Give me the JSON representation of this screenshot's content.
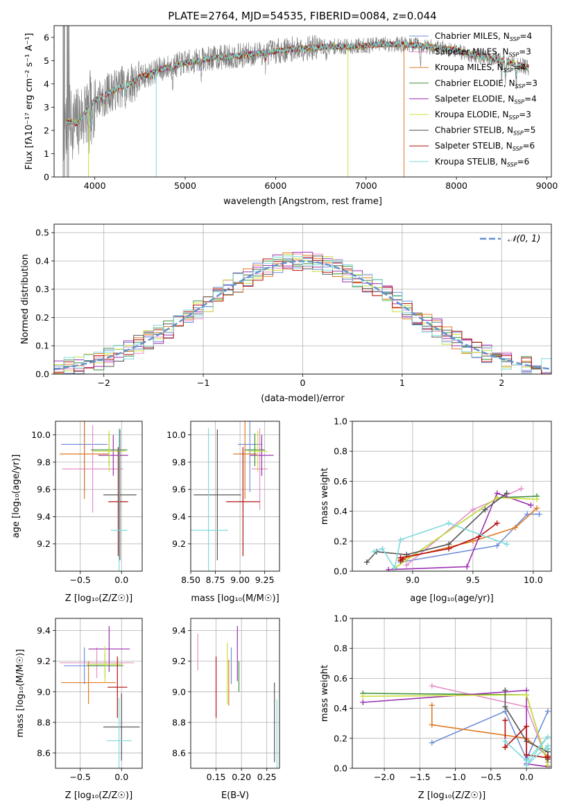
{
  "title": "PLATE=2764, MJD=54535, FIBERID=0084, z=0.044",
  "colors": {
    "Chabrier MILES": "#6f8fd8",
    "Salpeter MILES": "#e58fc7",
    "Kroupa MILES": "#e07a24",
    "Chabrier ELODIE": "#3e8e3e",
    "Salpeter ELODIE": "#9b2fb0",
    "Kroupa ELODIE": "#c9e03a",
    "Chabrier STELIB": "#555555",
    "Salpeter STELIB": "#b30f0f",
    "Kroupa STELIB": "#7fd9dc",
    "data": "#808080",
    "normal": "#5f8fd0"
  },
  "legend_top": [
    {
      "name": "Chabrier MILES, N",
      "sub": "SSP",
      "tail": "=4"
    },
    {
      "name": "Salpeter MILES, N",
      "sub": "SSP",
      "tail": "=3"
    },
    {
      "name": "Kroupa MILES, N",
      "sub": "SSP",
      "tail": "=4"
    },
    {
      "name": "Chabrier ELODIE, N",
      "sub": "SSP",
      "tail": "=3"
    },
    {
      "name": "Salpeter ELODIE, N",
      "sub": "SSP",
      "tail": "=4"
    },
    {
      "name": "Kroupa ELODIE, N",
      "sub": "SSP",
      "tail": "=3"
    },
    {
      "name": "Chabrier STELIB, N",
      "sub": "SSP",
      "tail": "=5"
    },
    {
      "name": "Salpeter STELIB, N",
      "sub": "SSP",
      "tail": "=6"
    },
    {
      "name": "Kroupa STELIB, N",
      "sub": "SSP",
      "tail": "=6"
    }
  ],
  "chart_data": [
    {
      "id": "spectrum",
      "type": "line",
      "xlabel": "wavelength [Angstrom, rest frame]",
      "ylabel": "Flux [fλ10⁻¹⁷ erg cm⁻² s⁻¹ A⁻¹]",
      "xlim": [
        3550,
        9050
      ],
      "ylim": [
        0,
        6.5
      ],
      "xticks": [
        4000,
        5000,
        6000,
        7000,
        8000,
        9000
      ],
      "yticks": [
        0,
        1,
        2,
        3,
        4,
        5,
        6
      ],
      "continuum": {
        "x": [
          3650,
          3700,
          3800,
          3900,
          4000,
          4100,
          4200,
          4300,
          4400,
          4500,
          4600,
          4700,
          4800,
          5000,
          5200,
          5400,
          5600,
          5800,
          6000,
          6200,
          6400,
          6600,
          6800,
          7000,
          7200,
          7400,
          7600,
          7800,
          8000,
          8200,
          8400,
          8600,
          8800
        ],
        "y": [
          2.1,
          2.4,
          2.3,
          2.8,
          3.3,
          3.5,
          3.7,
          3.9,
          4.0,
          4.3,
          4.4,
          4.6,
          4.7,
          4.9,
          5.05,
          5.15,
          5.2,
          5.3,
          5.4,
          5.5,
          5.55,
          5.6,
          5.6,
          5.65,
          5.7,
          5.7,
          5.65,
          5.55,
          5.45,
          5.2,
          5.1,
          4.9,
          4.7
        ]
      },
      "gaps": [
        {
          "series": "Kroupa STELIB",
          "x": 4680
        },
        {
          "series": "Kroupa ELODIE",
          "x": 6800
        },
        {
          "series": "Kroupa MILES",
          "x": 7420
        },
        {
          "series": "Kroupa ELODIE",
          "x": 3930
        }
      ],
      "series": [
        "Chabrier MILES",
        "Salpeter MILES",
        "Kroupa MILES",
        "Chabrier ELODIE",
        "Salpeter ELODIE",
        "Kroupa ELODIE",
        "Chabrier STELIB",
        "Salpeter STELIB",
        "Kroupa STELIB"
      ]
    },
    {
      "id": "residuals",
      "type": "line",
      "xlabel": "(data-model)/error",
      "ylabel": "Normed distribution",
      "xlim": [
        -2.5,
        2.5
      ],
      "ylim": [
        0,
        0.53
      ],
      "xticks": [
        -2,
        -1,
        0,
        1,
        2
      ],
      "yticks": [
        0.0,
        0.1,
        0.2,
        0.3,
        0.4,
        0.5
      ],
      "legend": "𝒩(0, 1)",
      "bin_width": 0.1,
      "model": "gaussian",
      "mean": 0,
      "sigma": 1
    },
    {
      "id": "age_vs_Z",
      "type": "scatter",
      "xlabel": "Z [log₁₀(Z/Z☉)]",
      "ylabel": "age  [log₁₀(age/yr)]",
      "xlim": [
        -0.8,
        0.25
      ],
      "ylim": [
        9.0,
        10.1
      ],
      "xticks": [
        -0.5,
        0.0
      ],
      "yticks": [
        9.2,
        9.4,
        9.6,
        9.8,
        10.0
      ],
      "points": [
        {
          "series": "Chabrier MILES",
          "x": -0.45,
          "xerr": 0.28,
          "y": 9.93,
          "yerr": 0.35
        },
        {
          "series": "Salpeter MILES",
          "x": -0.35,
          "xerr": 0.37,
          "y": 9.75,
          "yerr": 0.32
        },
        {
          "series": "Kroupa MILES",
          "x": -0.45,
          "xerr": 0.3,
          "y": 9.86,
          "yerr": 0.33
        },
        {
          "series": "Chabrier ELODIE",
          "x": -0.15,
          "xerr": 0.22,
          "y": 9.89,
          "yerr": 0.12
        },
        {
          "series": "Salpeter ELODIE",
          "x": -0.1,
          "xerr": 0.18,
          "y": 9.85,
          "yerr": 0.15
        },
        {
          "series": "Kroupa ELODIE",
          "x": -0.15,
          "xerr": 0.2,
          "y": 9.88,
          "yerr": 0.15
        },
        {
          "series": "Chabrier STELIB",
          "x": -0.02,
          "xerr": 0.2,
          "y": 9.56,
          "yerr": 0.48
        },
        {
          "series": "Salpeter STELIB",
          "x": -0.04,
          "xerr": 0.12,
          "y": 9.51,
          "yerr": 0.4
        },
        {
          "series": "Kroupa STELIB",
          "x": -0.03,
          "xerr": 0.1,
          "y": 9.3,
          "yerr": 0.75
        }
      ]
    },
    {
      "id": "age_vs_mass",
      "type": "scatter",
      "xlabel": "mass [log₁₀(M/M☉)]",
      "ylabel": "",
      "xlim": [
        8.5,
        9.4
      ],
      "ylim": [
        9.0,
        10.1
      ],
      "xticks": [
        8.5,
        8.75,
        9.0,
        9.25
      ],
      "yticks": [
        9.2,
        9.4,
        9.6,
        9.8,
        10.0
      ],
      "points": [
        {
          "series": "Chabrier MILES",
          "x": 9.1,
          "xerr": 0.12,
          "y": 9.93,
          "yerr": 0.35
        },
        {
          "series": "Salpeter MILES",
          "x": 9.2,
          "xerr": 0.08,
          "y": 9.75,
          "yerr": 0.3
        },
        {
          "series": "Kroupa MILES",
          "x": 9.05,
          "xerr": 0.12,
          "y": 9.86,
          "yerr": 0.33
        },
        {
          "series": "Chabrier ELODIE",
          "x": 9.15,
          "xerr": 0.1,
          "y": 9.89,
          "yerr": 0.12
        },
        {
          "series": "Salpeter ELODIE",
          "x": 9.22,
          "xerr": 0.12,
          "y": 9.85,
          "yerr": 0.15
        },
        {
          "series": "Kroupa ELODIE",
          "x": 9.18,
          "xerr": 0.1,
          "y": 9.88,
          "yerr": 0.15
        },
        {
          "series": "Chabrier STELIB",
          "x": 8.77,
          "xerr": 0.24,
          "y": 9.56,
          "yerr": 0.48
        },
        {
          "series": "Salpeter STELIB",
          "x": 9.03,
          "xerr": 0.17,
          "y": 9.51,
          "yerr": 0.4
        },
        {
          "series": "Kroupa STELIB",
          "x": 8.68,
          "xerr": 0.2,
          "y": 9.3,
          "yerr": 0.75
        }
      ]
    },
    {
      "id": "weight_vs_age",
      "type": "line",
      "xlabel": "age  [log₁₀(age/yr)]",
      "ylabel": "mass weight",
      "xlim": [
        8.5,
        10.15
      ],
      "ylim": [
        0,
        1.0
      ],
      "xticks": [
        9.0,
        9.5,
        10.0
      ],
      "yticks": [
        0.0,
        0.2,
        0.4,
        0.6,
        0.8,
        1.0
      ],
      "series": [
        {
          "name": "Chabrier MILES",
          "x": [
            10.05,
            9.95,
            9.7,
            8.9
          ],
          "y": [
            0.38,
            0.38,
            0.17,
            0.06
          ]
        },
        {
          "name": "Salpeter MILES",
          "x": [
            9.9,
            9.5,
            8.95
          ],
          "y": [
            0.55,
            0.41,
            0.04
          ]
        },
        {
          "name": "Kroupa MILES",
          "x": [
            10.03,
            9.85,
            9.5,
            8.9
          ],
          "y": [
            0.42,
            0.29,
            0.2,
            0.08
          ]
        },
        {
          "name": "Chabrier ELODIE",
          "x": [
            10.03,
            9.7,
            8.85
          ],
          "y": [
            0.5,
            0.49,
            0.02
          ]
        },
        {
          "name": "Salpeter ELODIE",
          "x": [
            9.98,
            9.7,
            9.45,
            8.8
          ],
          "y": [
            0.44,
            0.52,
            0.03,
            0.01
          ]
        },
        {
          "name": "Kroupa ELODIE",
          "x": [
            10.03,
            9.7,
            8.85
          ],
          "y": [
            0.48,
            0.49,
            0.02
          ]
        },
        {
          "name": "Chabrier STELIB",
          "x": [
            9.78,
            9.6,
            9.3,
            8.95,
            8.7,
            8.62
          ],
          "y": [
            0.52,
            0.41,
            0.18,
            0.11,
            0.13,
            0.06
          ]
        },
        {
          "name": "Salpeter STELIB",
          "x": [
            9.7,
            9.55,
            9.3,
            8.9,
            8.9,
            8.92
          ],
          "y": [
            0.32,
            0.23,
            0.15,
            0.09,
            0.07,
            0.08
          ]
        },
        {
          "name": "Kroupa STELIB",
          "x": [
            9.78,
            9.3,
            8.9,
            8.85,
            8.75,
            8.68
          ],
          "y": [
            0.18,
            0.32,
            0.21,
            0.02,
            0.15,
            0.13
          ]
        }
      ]
    },
    {
      "id": "mass_vs_Z",
      "type": "scatter",
      "xlabel": "Z [log₁₀(Z/Z☉)]",
      "ylabel": "mass [log₁₀(M/M☉)]",
      "xlim": [
        -0.8,
        0.25
      ],
      "ylim": [
        8.5,
        9.48
      ],
      "xticks": [
        -0.5,
        0.0
      ],
      "yticks": [
        8.6,
        8.8,
        9.0,
        9.2,
        9.4
      ],
      "points": [
        {
          "series": "Chabrier MILES",
          "x": -0.45,
          "xerr": 0.25,
          "y": 9.17,
          "yerr": 0.12
        },
        {
          "series": "Salpeter MILES",
          "x": -0.3,
          "xerr": 0.45,
          "y": 9.19,
          "yerr": 0.1
        },
        {
          "series": "Kroupa MILES",
          "x": -0.4,
          "xerr": 0.33,
          "y": 9.06,
          "yerr": 0.14
        },
        {
          "series": "Chabrier ELODIE",
          "x": -0.2,
          "xerr": 0.22,
          "y": 9.17,
          "yerr": 0.08
        },
        {
          "series": "Salpeter ELODIE",
          "x": -0.15,
          "xerr": 0.25,
          "y": 9.28,
          "yerr": 0.15
        },
        {
          "series": "Kroupa ELODIE",
          "x": -0.2,
          "xerr": 0.22,
          "y": 9.18,
          "yerr": 0.12
        },
        {
          "series": "Chabrier STELIB",
          "x": 0.0,
          "xerr": 0.22,
          "y": 8.77,
          "yerr": 0.22
        },
        {
          "series": "Salpeter STELIB",
          "x": -0.05,
          "xerr": 0.12,
          "y": 9.03,
          "yerr": 0.2
        },
        {
          "series": "Kroupa STELIB",
          "x": -0.03,
          "xerr": 0.15,
          "y": 8.68,
          "yerr": 0.28
        }
      ]
    },
    {
      "id": "mass_vs_ebv",
      "type": "scatter",
      "xlabel": "E(B-V)",
      "ylabel": "",
      "xlim": [
        0.1,
        0.275
      ],
      "ylim": [
        8.5,
        9.48
      ],
      "xticks": [
        0.15,
        0.2,
        0.25
      ],
      "yticks": [
        8.6,
        8.8,
        9.0,
        9.2,
        9.4
      ],
      "points": [
        {
          "series": "Chabrier MILES",
          "x": 0.18,
          "y": 9.17,
          "yerr": 0.12
        },
        {
          "series": "Salpeter MILES",
          "x": 0.114,
          "y": 9.26,
          "yerr": 0.12
        },
        {
          "series": "Kroupa MILES",
          "x": 0.175,
          "y": 9.06,
          "yerr": 0.15
        },
        {
          "series": "Chabrier ELODIE",
          "x": 0.195,
          "y": 9.1,
          "yerr": 0.1
        },
        {
          "series": "Salpeter ELODIE",
          "x": 0.192,
          "y": 9.25,
          "yerr": 0.18
        },
        {
          "series": "Kroupa ELODIE",
          "x": 0.172,
          "y": 9.12,
          "yerr": 0.2
        },
        {
          "series": "Chabrier STELIB",
          "x": 0.265,
          "y": 8.8,
          "yerr": 0.26
        },
        {
          "series": "Salpeter STELIB",
          "x": 0.15,
          "y": 9.03,
          "yerr": 0.2
        },
        {
          "series": "Kroupa STELIB",
          "x": 0.27,
          "y": 8.68,
          "yerr": 0.27
        }
      ]
    },
    {
      "id": "weight_vs_Z",
      "type": "line",
      "xlabel": "Z [log₁₀(Z/Z☉)]",
      "ylabel": "mass weight",
      "xlim": [
        -2.45,
        0.35
      ],
      "ylim": [
        0,
        1.0
      ],
      "xticks": [
        -2.0,
        -1.5,
        -1.0,
        -0.5,
        0.0
      ],
      "yticks": [
        0.0,
        0.2,
        0.4,
        0.6,
        0.8,
        1.0
      ],
      "series": [
        {
          "name": "Chabrier MILES",
          "x": [
            -1.33,
            -0.3,
            0.0,
            0.3
          ],
          "y": [
            0.17,
            0.38,
            0.06,
            0.38
          ]
        },
        {
          "name": "Salpeter MILES",
          "x": [
            -1.33,
            0.0,
            0.3
          ],
          "y": [
            0.55,
            0.41,
            0.04
          ]
        },
        {
          "name": "Kroupa MILES",
          "x": [
            -1.33,
            -1.33,
            0.0,
            0.3
          ],
          "y": [
            0.42,
            0.29,
            0.2,
            0.08
          ]
        },
        {
          "name": "Chabrier ELODIE",
          "x": [
            -2.3,
            0.0,
            0.3
          ],
          "y": [
            0.5,
            0.49,
            0.02
          ]
        },
        {
          "name": "Salpeter ELODIE",
          "x": [
            -2.3,
            0.0,
            0.0,
            0.3
          ],
          "y": [
            0.44,
            0.52,
            0.03,
            0.01
          ]
        },
        {
          "name": "Kroupa ELODIE",
          "x": [
            -2.3,
            0.0,
            0.3
          ],
          "y": [
            0.48,
            0.49,
            0.02
          ]
        },
        {
          "name": "Chabrier STELIB",
          "x": [
            -0.3,
            -0.3,
            0.0,
            0.3,
            0.3,
            0.3
          ],
          "y": [
            0.52,
            0.41,
            0.18,
            0.11,
            0.13,
            0.06
          ]
        },
        {
          "name": "Salpeter STELIB",
          "x": [
            -0.3,
            -0.3,
            0.0,
            0.0,
            0.3,
            0.3
          ],
          "y": [
            0.32,
            0.14,
            0.28,
            0.09,
            0.07,
            0.08
          ]
        },
        {
          "name": "Kroupa STELIB",
          "x": [
            -0.3,
            0.0,
            0.3,
            0.0,
            0.3,
            0.3
          ],
          "y": [
            0.18,
            0.05,
            0.21,
            0.02,
            0.15,
            0.13
          ]
        }
      ]
    }
  ]
}
